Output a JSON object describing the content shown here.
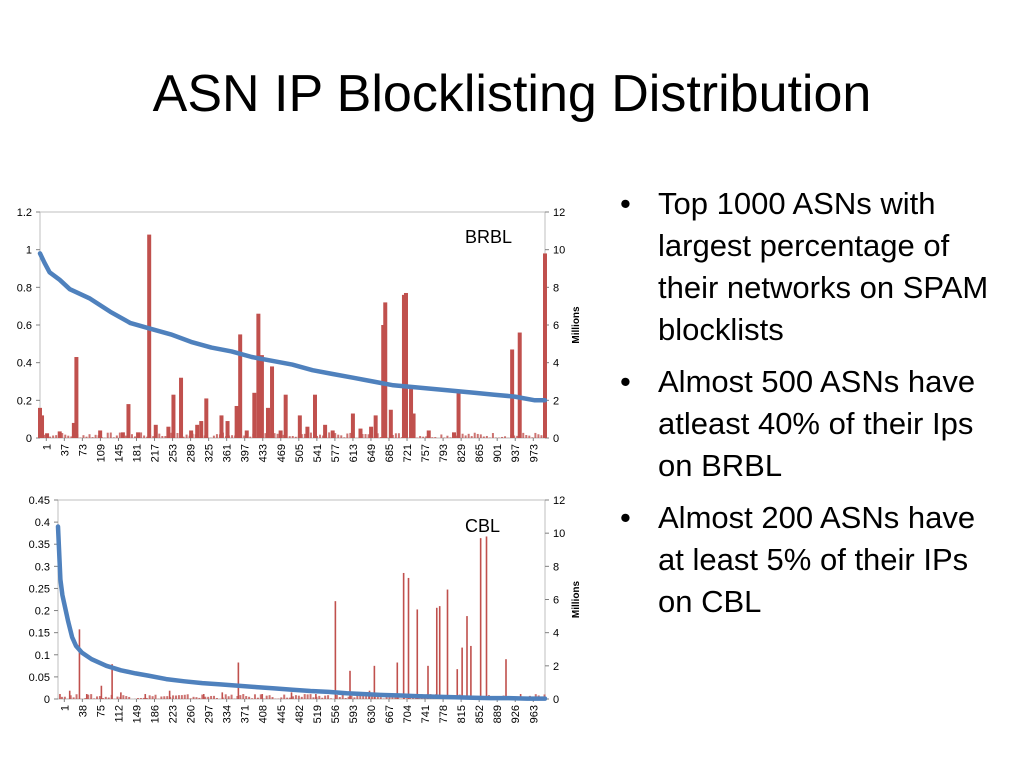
{
  "slide": {
    "title": "ASN IP Blocklisting Distribution",
    "bullets": [
      "Top 1000 ASNs with largest percentage of their networks on SPAM blocklists",
      "Almost 500 ASNs have atleast 40% of their Ips on BRBL",
      "Almost 200 ASNs have at least 5% of their IPs on CBL"
    ]
  },
  "chart_data": [
    {
      "type": "bar",
      "name": "BRBL",
      "label": "BRBL",
      "bar_color": "#c0504d",
      "line_color": "#4f81bd",
      "x_range": [
        1,
        1000
      ],
      "xtick_labels": [
        "1",
        "37",
        "73",
        "109",
        "145",
        "181",
        "217",
        "253",
        "289",
        "325",
        "361",
        "397",
        "433",
        "469",
        "505",
        "541",
        "577",
        "613",
        "649",
        "685",
        "721",
        "757",
        "793",
        "829",
        "865",
        "901",
        "937",
        "973"
      ],
      "ylim_left": [
        0,
        1.2
      ],
      "ytick_labels_left": [
        "0",
        "0.2",
        "0.4",
        "0.6",
        "0.8",
        "1",
        "1.2"
      ],
      "ylim_right": [
        0,
        12
      ],
      "ytick_labels_right": [
        "0",
        "2",
        "4",
        "6",
        "8",
        "10",
        "12"
      ],
      "ylabel_right": "Millions",
      "line_points": [
        [
          1,
          0.98
        ],
        [
          10,
          0.93
        ],
        [
          20,
          0.88
        ],
        [
          40,
          0.84
        ],
        [
          60,
          0.79
        ],
        [
          100,
          0.74
        ],
        [
          140,
          0.67
        ],
        [
          180,
          0.61
        ],
        [
          220,
          0.58
        ],
        [
          260,
          0.55
        ],
        [
          300,
          0.51
        ],
        [
          340,
          0.48
        ],
        [
          380,
          0.46
        ],
        [
          420,
          0.43
        ],
        [
          460,
          0.41
        ],
        [
          500,
          0.39
        ],
        [
          540,
          0.36
        ],
        [
          580,
          0.34
        ],
        [
          620,
          0.32
        ],
        [
          660,
          0.3
        ],
        [
          700,
          0.28
        ],
        [
          740,
          0.27
        ],
        [
          780,
          0.26
        ],
        [
          820,
          0.25
        ],
        [
          860,
          0.24
        ],
        [
          900,
          0.23
        ],
        [
          940,
          0.22
        ],
        [
          980,
          0.2
        ],
        [
          1000,
          0.2
        ]
      ],
      "bars": [
        [
          1,
          1.6
        ],
        [
          5,
          1.2
        ],
        [
          15,
          0.25
        ],
        [
          40,
          0.35
        ],
        [
          68,
          0.8
        ],
        [
          73,
          4.3
        ],
        [
          120,
          0.4
        ],
        [
          165,
          0.3
        ],
        [
          176,
          1.8
        ],
        [
          195,
          0.3
        ],
        [
          217,
          10.8
        ],
        [
          230,
          0.7
        ],
        [
          255,
          0.6
        ],
        [
          265,
          2.3
        ],
        [
          280,
          3.2
        ],
        [
          300,
          0.4
        ],
        [
          312,
          0.7
        ],
        [
          320,
          0.9
        ],
        [
          330,
          2.1
        ],
        [
          360,
          1.2
        ],
        [
          372,
          0.9
        ],
        [
          390,
          1.7
        ],
        [
          397,
          5.5
        ],
        [
          410,
          0.4
        ],
        [
          425,
          2.4
        ],
        [
          433,
          6.6
        ],
        [
          440,
          4.4
        ],
        [
          452,
          1.6
        ],
        [
          460,
          3.8
        ],
        [
          477,
          0.4
        ],
        [
          487,
          2.3
        ],
        [
          515,
          1.2
        ],
        [
          530,
          0.6
        ],
        [
          545,
          2.3
        ],
        [
          565,
          0.7
        ],
        [
          580,
          0.4
        ],
        [
          620,
          1.3
        ],
        [
          635,
          0.5
        ],
        [
          656,
          0.6
        ],
        [
          665,
          1.2
        ],
        [
          680,
          6.0
        ],
        [
          684,
          7.2
        ],
        [
          695,
          1.5
        ],
        [
          721,
          7.6
        ],
        [
          725,
          7.7
        ],
        [
          735,
          2.6
        ],
        [
          740,
          1.3
        ],
        [
          770,
          0.4
        ],
        [
          820,
          0.3
        ],
        [
          829,
          2.4
        ],
        [
          935,
          4.7
        ],
        [
          950,
          5.6
        ],
        [
          1000,
          9.8
        ]
      ]
    },
    {
      "type": "bar",
      "name": "CBL",
      "label": "CBL",
      "bar_color": "#c0504d",
      "line_color": "#4f81bd",
      "x_range": [
        1,
        1000
      ],
      "xtick_labels": [
        "1",
        "38",
        "75",
        "112",
        "149",
        "186",
        "223",
        "260",
        "297",
        "334",
        "371",
        "408",
        "445",
        "482",
        "519",
        "556",
        "593",
        "630",
        "667",
        "704",
        "741",
        "778",
        "815",
        "852",
        "889",
        "926",
        "963"
      ],
      "ylim_left": [
        0,
        0.45
      ],
      "ytick_labels_left": [
        "0",
        "0.05",
        "0.1",
        "0.15",
        "0.2",
        "0.25",
        "0.3",
        "0.35",
        "0.4",
        "0.45"
      ],
      "ylim_right": [
        0,
        12
      ],
      "ytick_labels_right": [
        "0",
        "2",
        "4",
        "6",
        "8",
        "10",
        "12"
      ],
      "ylabel_right": "Millions",
      "line_points": [
        [
          1,
          0.39
        ],
        [
          3,
          0.34
        ],
        [
          6,
          0.27
        ],
        [
          10,
          0.235
        ],
        [
          15,
          0.21
        ],
        [
          22,
          0.175
        ],
        [
          30,
          0.14
        ],
        [
          38,
          0.12
        ],
        [
          50,
          0.105
        ],
        [
          70,
          0.09
        ],
        [
          100,
          0.075
        ],
        [
          130,
          0.065
        ],
        [
          160,
          0.058
        ],
        [
          186,
          0.053
        ],
        [
          223,
          0.045
        ],
        [
          260,
          0.04
        ],
        [
          297,
          0.036
        ],
        [
          334,
          0.033
        ],
        [
          371,
          0.03
        ],
        [
          408,
          0.027
        ],
        [
          445,
          0.024
        ],
        [
          482,
          0.021
        ],
        [
          519,
          0.018
        ],
        [
          556,
          0.016
        ],
        [
          593,
          0.013
        ],
        [
          630,
          0.011
        ],
        [
          667,
          0.009
        ],
        [
          704,
          0.008
        ],
        [
          741,
          0.006
        ],
        [
          778,
          0.005
        ],
        [
          815,
          0.004
        ],
        [
          852,
          0.003
        ],
        [
          889,
          0.002
        ],
        [
          926,
          0.002
        ],
        [
          963,
          0.001
        ],
        [
          1000,
          0.001
        ]
      ],
      "bars": [
        [
          5,
          0.3
        ],
        [
          25,
          0.5
        ],
        [
          45,
          4.2
        ],
        [
          60,
          0.3
        ],
        [
          90,
          0.8
        ],
        [
          112,
          2.1
        ],
        [
          130,
          0.4
        ],
        [
          180,
          0.3
        ],
        [
          230,
          0.5
        ],
        [
          300,
          0.3
        ],
        [
          338,
          0.4
        ],
        [
          371,
          2.2
        ],
        [
          420,
          0.3
        ],
        [
          480,
          0.4
        ],
        [
          530,
          0.3
        ],
        [
          570,
          5.9
        ],
        [
          600,
          1.7
        ],
        [
          640,
          0.5
        ],
        [
          650,
          2.0
        ],
        [
          697,
          2.2
        ],
        [
          710,
          7.6
        ],
        [
          720,
          7.3
        ],
        [
          738,
          5.4
        ],
        [
          760,
          2.0
        ],
        [
          778,
          5.5
        ],
        [
          784,
          5.6
        ],
        [
          800,
          6.6
        ],
        [
          820,
          1.8
        ],
        [
          830,
          3.1
        ],
        [
          840,
          5.0
        ],
        [
          848,
          3.2
        ],
        [
          868,
          9.7
        ],
        [
          880,
          9.8
        ],
        [
          920,
          2.4
        ],
        [
          950,
          0.3
        ]
      ]
    }
  ]
}
